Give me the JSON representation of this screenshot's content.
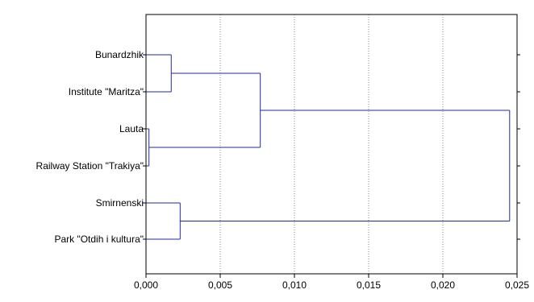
{
  "chart_data": {
    "type": "dendrogram",
    "orientation": "horizontal",
    "xlim": [
      0,
      0.025
    ],
    "x_ticks": [
      {
        "value": 0.0,
        "label": "0,000"
      },
      {
        "value": 0.005,
        "label": "0,005"
      },
      {
        "value": 0.01,
        "label": "0,010"
      },
      {
        "value": 0.015,
        "label": "0,015"
      },
      {
        "value": 0.02,
        "label": "0,020"
      },
      {
        "value": 0.025,
        "label": "0,025"
      }
    ],
    "leaves": [
      "Bunardzhik",
      "Institute \"Maritza\"",
      "Lauta",
      "Railway Station \"Trakiya\"",
      "Smirnenski",
      "Park \"Otdih i kultura\""
    ],
    "merges": [
      {
        "members": [
          "Lauta",
          "Railway Station \"Trakiya\""
        ],
        "distance": 0.0002
      },
      {
        "members": [
          "Bunardzhik",
          "Institute \"Maritza\""
        ],
        "distance": 0.0017
      },
      {
        "members": [
          "Smirnenski",
          "Park \"Otdih i kultura\""
        ],
        "distance": 0.0023
      },
      {
        "members": [
          "Bunardzhik",
          "Institute \"Maritza\"",
          "Lauta",
          "Railway Station \"Trakiya\""
        ],
        "distance": 0.0077
      },
      {
        "members": [
          "Bunardzhik",
          "Institute \"Maritza\"",
          "Lauta",
          "Railway Station \"Trakiya\"",
          "Smirnenski",
          "Park \"Otdih i kultura\""
        ],
        "distance": 0.0245
      }
    ],
    "grid": {
      "vertical": true,
      "horizontal": false,
      "style": "dotted"
    },
    "colors": {
      "link": "#1f2aa0",
      "grid": "#8c8c8c",
      "frame": "#000000"
    }
  }
}
